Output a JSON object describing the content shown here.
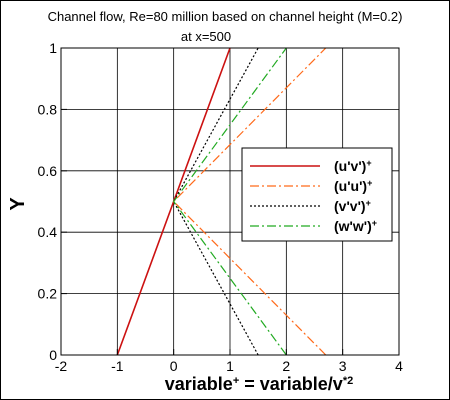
{
  "chart_data": {
    "type": "line",
    "title": "Channel flow, Re=80 million based on channel height (M=0.2)",
    "subtitle": "at x=500",
    "xlabel_main": "variable",
    "xlabel_mid": " = variable/v",
    "xlabel_sup_plus": "+",
    "xlabel_sup_star2": "*2",
    "ylabel": "Y",
    "xlim": [
      -2,
      4
    ],
    "ylim": [
      0,
      1
    ],
    "xticks": [
      "-2",
      "-1",
      "0",
      "1",
      "2",
      "3",
      "4"
    ],
    "yticks": [
      "0",
      "0.2",
      "0.4",
      "0.6",
      "0.8",
      "1"
    ],
    "grid": true,
    "legend_position": "right",
    "series": [
      {
        "name": "(u'v')",
        "name_sup": "+",
        "color": "#cc1111",
        "style": "solid",
        "x": [
          -1,
          0,
          1
        ],
        "y": [
          0,
          0.5,
          1
        ]
      },
      {
        "name": "(u'u')",
        "name_sup": "+",
        "color": "#ff6a1a",
        "style": "dashdot",
        "x": [
          2.7,
          0,
          2.7
        ],
        "y": [
          0,
          0.5,
          1
        ]
      },
      {
        "name": "(v'v')",
        "name_sup": "+",
        "color": "#000000",
        "style": "dotted",
        "x": [
          1.5,
          0,
          1.5
        ],
        "y": [
          0,
          0.5,
          1
        ]
      },
      {
        "name": "(w'w')",
        "name_sup": "+",
        "color": "#22aa22",
        "style": "dashdot",
        "x": [
          2.0,
          0,
          2.0
        ],
        "y": [
          0,
          0.5,
          1
        ]
      }
    ]
  }
}
